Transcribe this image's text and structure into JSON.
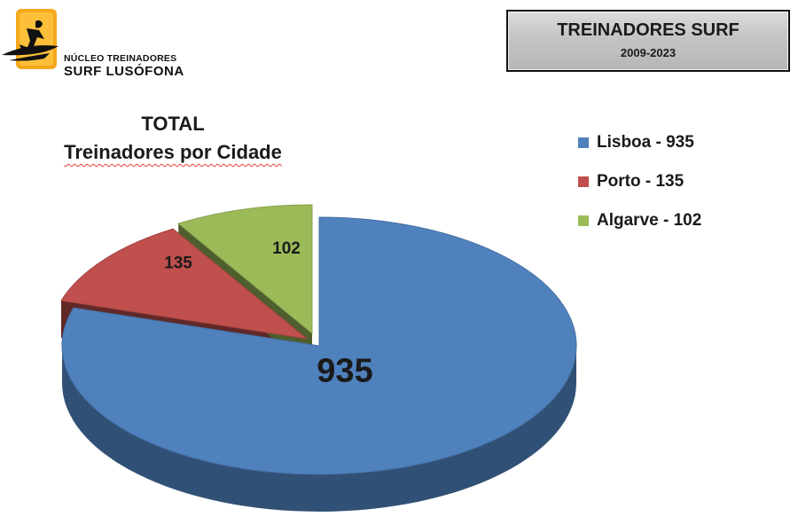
{
  "logo": {
    "line1": "NÚCLEO TREINADORES",
    "line2": "SURF LUSÓFONA",
    "icon": "surfer-icon"
  },
  "header": {
    "title": "TREINADORES SURF",
    "subtitle": "2009-2023"
  },
  "chart_data": {
    "type": "pie",
    "style": "3d-exploded",
    "title": "TOTAL",
    "subtitle": "Treinadores por Cidade",
    "legend_position": "right",
    "slices": [
      {
        "label": "Lisboa",
        "value": 935,
        "legend": "Lisboa - 935",
        "color": "#4F81BD",
        "data_label": "935"
      },
      {
        "label": "Porto",
        "value": 135,
        "legend": "Porto - 135",
        "color": "#C0504D",
        "data_label": "135"
      },
      {
        "label": "Algarve",
        "value": 102,
        "legend": "Algarve - 102",
        "color": "#9BBB59",
        "data_label": "102"
      }
    ]
  }
}
